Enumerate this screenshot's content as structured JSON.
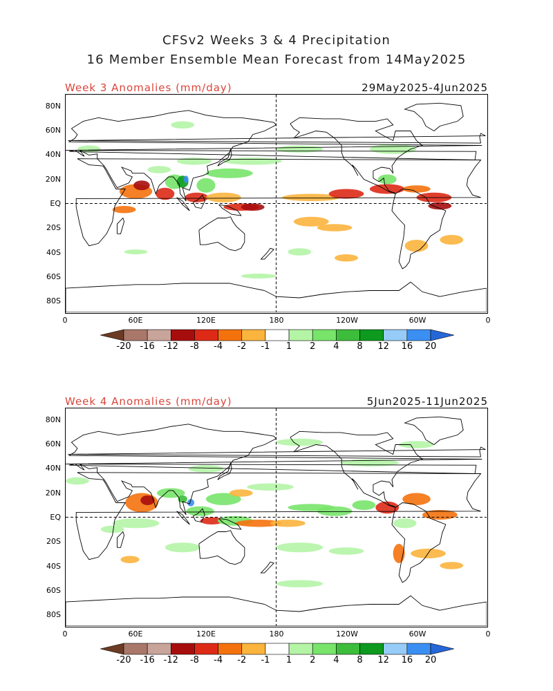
{
  "header": {
    "title_line1": "CFSv2 Weeks 3 & 4 Precipitation",
    "title_line2": "16 Member Ensemble Mean Forecast from 14May2025"
  },
  "panels": [
    {
      "label": "Week 3 Anomalies (mm/day)",
      "dates": "29May2025-4Jun2025"
    },
    {
      "label": "Week 4 Anomalies (mm/day)",
      "dates": "5Jun2025-11Jun2025"
    }
  ],
  "axes": {
    "lat_labels": [
      "80N",
      "60N",
      "40N",
      "20N",
      "EQ",
      "20S",
      "40S",
      "60S",
      "80S"
    ],
    "lon_labels": [
      "0",
      "60E",
      "120E",
      "180",
      "120W",
      "60W",
      "0"
    ]
  },
  "colorbar": {
    "labels": [
      "-20",
      "-16",
      "-12",
      "-8",
      "-4",
      "-2",
      "-1",
      "1",
      "2",
      "4",
      "8",
      "12",
      "16",
      "20"
    ],
    "colors": [
      "#6b3b25",
      "#a9786a",
      "#c9a49b",
      "#a80d0d",
      "#dd2a17",
      "#f4720d",
      "#fbb43d",
      "#ffffff",
      "#b4f4a6",
      "#78e46a",
      "#3dbd3b",
      "#0d9a1f",
      "#96ccf7",
      "#3b8ff2",
      "#2667d8"
    ]
  }
}
